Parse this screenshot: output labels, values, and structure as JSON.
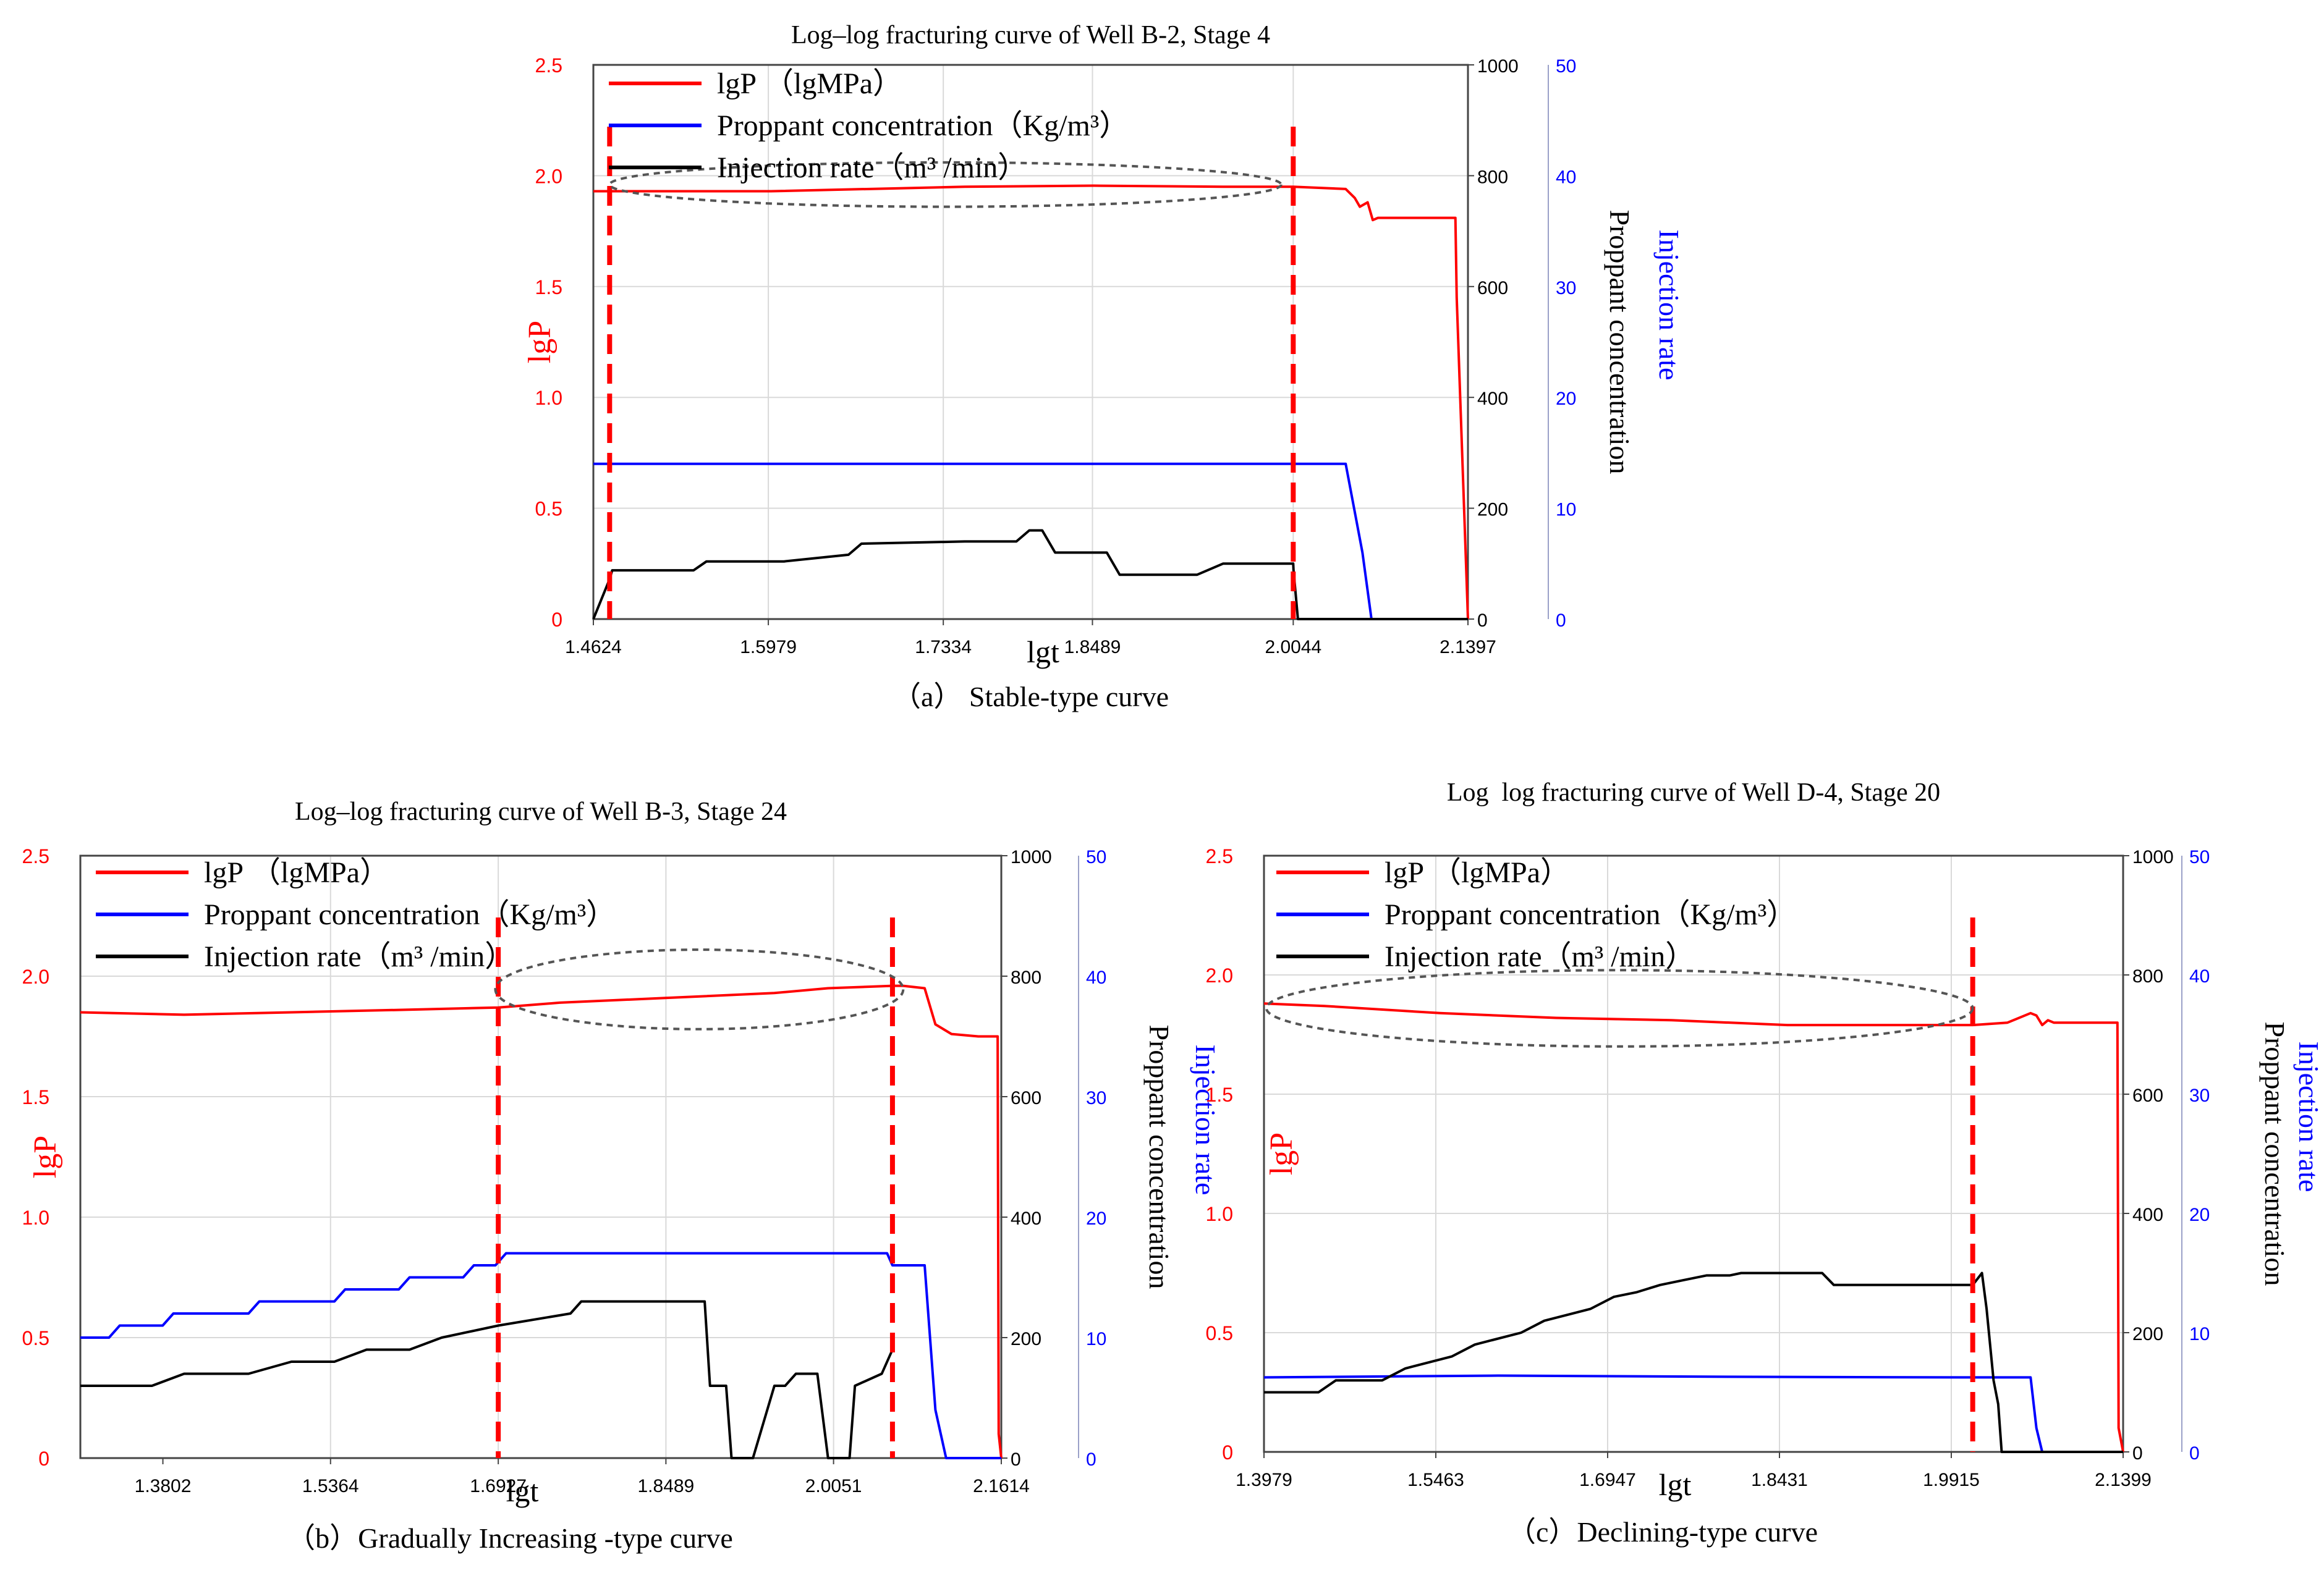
{
  "colors": {
    "lgP": "#ff0000",
    "proppant": "#0000ff",
    "injection": "#000000",
    "grid": "#d9d9d9",
    "marker": "#ff0000",
    "ellipse": "#555555"
  },
  "legend_labels": [
    "lgP （lgMPa）",
    "Proppant concentration（Kg/m³）",
    "Injection rate（m³ /min）"
  ],
  "chart_data": [
    {
      "id": "a",
      "type": "line",
      "title": "Log–log fracturing curve of Well B-2, Stage 4",
      "caption": "（a） Stable-type curve",
      "xlabel": "lgt",
      "ylabel_left": "lgP",
      "ylabel_right_black": "Proppant concentration",
      "ylabel_right_blue": "Injection rate",
      "xlim": [
        1.4624,
        2.1397
      ],
      "xticks": [
        "1.4624",
        "1.5979",
        "1.7334",
        "1.8489",
        "2.0044",
        "2.1397"
      ],
      "ylim_left": [
        0,
        2.5
      ],
      "yticks_left": [
        "0",
        "0.5",
        "1.0",
        "1.5",
        "2.0",
        "2.5"
      ],
      "ylim_right_black": [
        0,
        1000
      ],
      "yticks_right_black": [
        "0",
        "200",
        "400",
        "600",
        "800",
        "1000"
      ],
      "ylim_right_blue": [
        0,
        50
      ],
      "yticks_right_blue": [
        "0",
        "10",
        "20",
        "30",
        "40",
        "50"
      ],
      "vlines": [
        1.475,
        2.0044
      ],
      "ellipse": {
        "x": [
          1.475,
          1.995
        ],
        "y": [
          1.86,
          2.06
        ]
      },
      "series": [
        {
          "name": "lgP",
          "axis": "left",
          "color": "red",
          "x": [
            1.4624,
            1.6,
            1.75,
            1.85,
            1.95,
            2.0044,
            2.045,
            2.052,
            2.056,
            2.062,
            2.066,
            2.07,
            2.13,
            2.131,
            2.1397
          ],
          "y": [
            1.93,
            1.93,
            1.95,
            1.955,
            1.95,
            1.95,
            1.94,
            1.9,
            1.86,
            1.88,
            1.8,
            1.81,
            1.81,
            1.45,
            0
          ]
        },
        {
          "name": "Proppant concentration",
          "axis": "right_black",
          "color": "blue",
          "x": [
            1.4624,
            2.045,
            2.058,
            2.065,
            2.1397
          ],
          "y": [
            280,
            280,
            120,
            0,
            0
          ]
        },
        {
          "name": "Injection rate",
          "axis": "left",
          "color": "black",
          "x": [
            1.4624,
            1.475,
            1.477,
            1.54,
            1.55,
            1.61,
            1.66,
            1.67,
            1.75,
            1.79,
            1.8,
            1.81,
            1.82,
            1.86,
            1.87,
            1.93,
            1.95,
            2.0044,
            2.0046,
            2.008,
            2.1397
          ],
          "y": [
            0,
            0.18,
            0.22,
            0.22,
            0.26,
            0.26,
            0.29,
            0.34,
            0.35,
            0.35,
            0.4,
            0.4,
            0.3,
            0.3,
            0.2,
            0.2,
            0.25,
            0.25,
            0.22,
            0,
            0
          ]
        }
      ]
    },
    {
      "id": "b",
      "type": "line",
      "title": "Log–log fracturing curve of Well B-3, Stage 24",
      "caption": "（b）Gradually Increasing -type curve",
      "xlabel": "lgt",
      "ylabel_left": "lgP",
      "ylabel_right_black": "Proppant concentration",
      "ylabel_right_blue": "Injection rate",
      "xlim": [
        1.3033,
        2.1614
      ],
      "xticks": [
        "1.3802",
        "1.5364",
        "1.6927",
        "1.8489",
        "2.0051",
        "2.1614"
      ],
      "ylim_left": [
        0,
        2.5
      ],
      "yticks_left": [
        "0",
        "0.5",
        "1.0",
        "1.5",
        "2.0",
        "2.5"
      ],
      "ylim_right_black": [
        0,
        1000
      ],
      "yticks_right_black": [
        "0",
        "200",
        "400",
        "600",
        "800",
        "1000"
      ],
      "ylim_right_blue": [
        0,
        50
      ],
      "yticks_right_blue": [
        "0",
        "10",
        "20",
        "30",
        "40",
        "50"
      ],
      "vlines": [
        1.6927,
        2.06
      ],
      "ellipse": {
        "x": [
          1.69,
          2.07
        ],
        "y": [
          1.78,
          2.11
        ]
      },
      "series": [
        {
          "name": "lgP",
          "axis": "left",
          "color": "red",
          "x": [
            1.3033,
            1.4,
            1.5,
            1.6,
            1.6927,
            1.75,
            1.85,
            1.95,
            2.0,
            2.06,
            2.07,
            2.09,
            2.1,
            2.115,
            2.14,
            2.158,
            2.159,
            2.1614
          ],
          "y": [
            1.85,
            1.84,
            1.85,
            1.86,
            1.87,
            1.89,
            1.91,
            1.93,
            1.95,
            1.96,
            1.96,
            1.95,
            1.8,
            1.76,
            1.75,
            1.75,
            0.1,
            0
          ]
        },
        {
          "name": "Proppant concentration",
          "axis": "right_black",
          "color": "blue",
          "x": [
            1.3033,
            1.33,
            1.34,
            1.38,
            1.39,
            1.46,
            1.47,
            1.54,
            1.55,
            1.6,
            1.61,
            1.66,
            1.67,
            1.69,
            1.7,
            2.055,
            2.06,
            2.09,
            2.1,
            2.11,
            2.1614
          ],
          "y": [
            200,
            200,
            220,
            220,
            240,
            240,
            260,
            260,
            280,
            280,
            300,
            300,
            320,
            320,
            340,
            340,
            320,
            320,
            80,
            0,
            0
          ]
        },
        {
          "name": "Injection rate",
          "axis": "left",
          "color": "black",
          "x": [
            1.3033,
            1.37,
            1.4,
            1.46,
            1.5,
            1.54,
            1.57,
            1.61,
            1.64,
            1.6927,
            1.76,
            1.77,
            1.84,
            1.885,
            1.89,
            1.905,
            1.91,
            1.93,
            1.95,
            1.96,
            1.97,
            1.99,
            2.0,
            2.02,
            2.025,
            2.05,
            2.06,
            2.062
          ],
          "y": [
            0.3,
            0.3,
            0.35,
            0.35,
            0.4,
            0.4,
            0.45,
            0.45,
            0.5,
            0.55,
            0.6,
            0.65,
            0.65,
            0.65,
            0.3,
            0.3,
            0.0,
            0.0,
            0.3,
            0.3,
            0.35,
            0.35,
            0.0,
            0.0,
            0.3,
            0.35,
            0.45,
            0.45
          ]
        }
      ]
    },
    {
      "id": "c",
      "type": "line",
      "title": "Log  log fracturing curve of Well D-4, Stage 20",
      "caption": "（c）Declining-type curve",
      "xlabel": "lgt",
      "ylabel_left": "lgP",
      "ylabel_right_black": "Proppant concentration",
      "ylabel_right_blue": "Injection rate",
      "xlim": [
        1.3979,
        2.1399
      ],
      "xticks": [
        "1.3979",
        "1.5463",
        "1.6947",
        "1.8431",
        "1.9915",
        "2.1399"
      ],
      "ylim_left": [
        0,
        2.5
      ],
      "yticks_left": [
        "0",
        "0.5",
        "1.0",
        "1.5",
        "2.0",
        "2.5"
      ],
      "ylim_right_black": [
        0,
        1000
      ],
      "yticks_right_black": [
        "0",
        "200",
        "400",
        "600",
        "800",
        "1000"
      ],
      "ylim_right_blue": [
        0,
        50
      ],
      "yticks_right_blue": [
        "0",
        "10",
        "20",
        "30",
        "40",
        "50"
      ],
      "vlines": [
        2.01
      ],
      "ellipse": {
        "x": [
          1.4,
          2.01
        ],
        "y": [
          1.7,
          2.02
        ]
      },
      "series": [
        {
          "name": "lgP",
          "axis": "left",
          "color": "red",
          "x": [
            1.3979,
            1.45,
            1.55,
            1.65,
            1.75,
            1.85,
            1.95,
            2.01,
            2.04,
            2.06,
            2.065,
            2.07,
            2.075,
            2.08,
            2.135,
            2.136,
            2.1399
          ],
          "y": [
            1.88,
            1.87,
            1.84,
            1.82,
            1.81,
            1.79,
            1.79,
            1.79,
            1.8,
            1.84,
            1.83,
            1.79,
            1.81,
            1.8,
            1.8,
            0.1,
            0
          ]
        },
        {
          "name": "Proppant concentration",
          "axis": "right_black",
          "color": "blue",
          "x": [
            1.3979,
            1.6,
            1.8,
            2.0,
            2.06,
            2.065,
            2.07,
            2.1399
          ],
          "y": [
            125,
            128,
            126,
            125,
            125,
            40,
            0,
            0
          ]
        },
        {
          "name": "Injection rate",
          "axis": "left",
          "color": "black",
          "x": [
            1.3979,
            1.445,
            1.46,
            1.5,
            1.52,
            1.56,
            1.58,
            1.62,
            1.64,
            1.68,
            1.7,
            1.72,
            1.74,
            1.76,
            1.78,
            1.8,
            1.81,
            1.83,
            1.85,
            1.88,
            1.89,
            2.01,
            2.018,
            2.022,
            2.028,
            2.032,
            2.035,
            2.1399
          ],
          "y": [
            0.25,
            0.25,
            0.3,
            0.3,
            0.35,
            0.4,
            0.45,
            0.5,
            0.55,
            0.6,
            0.65,
            0.67,
            0.7,
            0.72,
            0.74,
            0.74,
            0.75,
            0.75,
            0.75,
            0.75,
            0.7,
            0.7,
            0.75,
            0.6,
            0.3,
            0.2,
            0,
            0
          ]
        }
      ]
    }
  ]
}
